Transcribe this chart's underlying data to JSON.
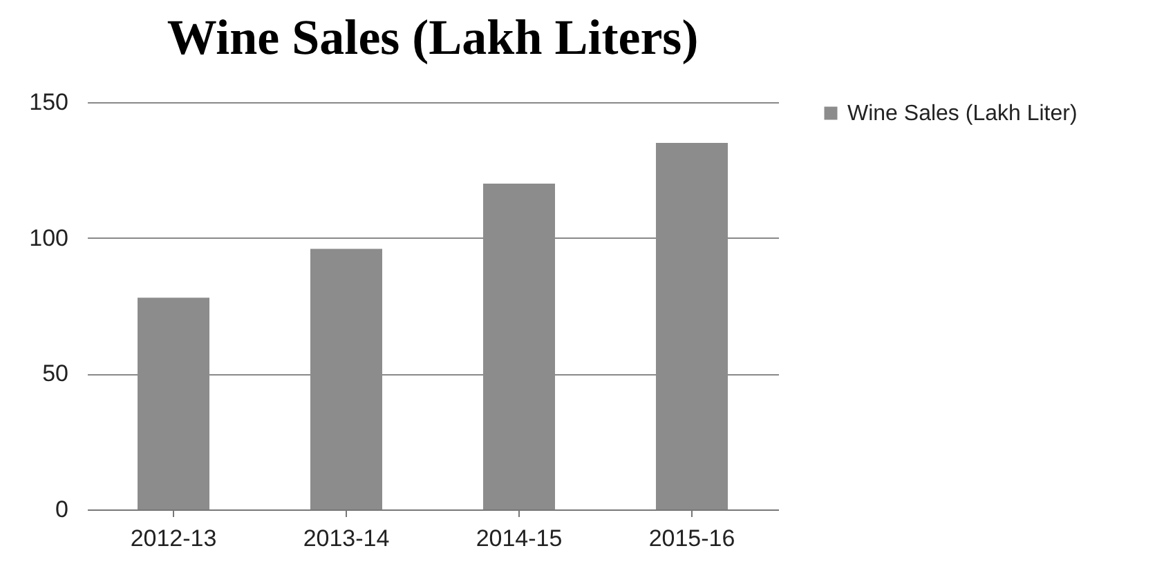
{
  "chart_data": {
    "type": "bar",
    "title": "Wine Sales (Lakh Liters)",
    "categories": [
      "2012-13",
      "2013-14",
      "2014-15",
      "2015-16"
    ],
    "series": [
      {
        "name": "Wine Sales (Lakh Liter)",
        "color": "#8c8c8c",
        "values": [
          78,
          96,
          120,
          135
        ]
      }
    ],
    "ylim": [
      0,
      150
    ],
    "yticks": [
      0,
      50,
      100,
      150
    ],
    "grid": "y",
    "legend": "right"
  }
}
